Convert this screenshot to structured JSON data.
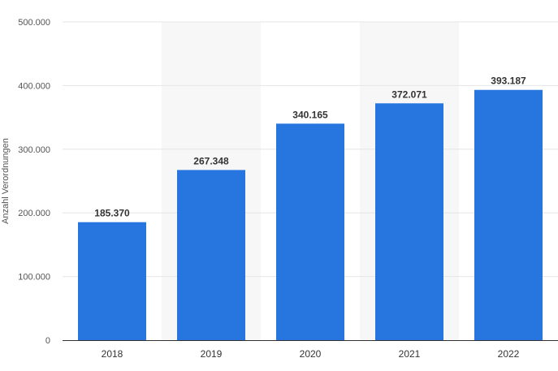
{
  "chart_data": {
    "type": "bar",
    "title": "",
    "xlabel": "",
    "ylabel": "Anzahl Verordnungen",
    "categories": [
      "2018",
      "2019",
      "2020",
      "2021",
      "2022"
    ],
    "values": [
      185370,
      267348,
      340165,
      372071,
      393187
    ],
    "value_labels": [
      "185.370",
      "267.348",
      "340.165",
      "372.071",
      "393.187"
    ],
    "ylim": [
      0,
      500000
    ],
    "yticks": [
      0,
      100000,
      200000,
      300000,
      400000,
      500000
    ],
    "ytick_labels": [
      "0",
      "100.000",
      "200.000",
      "300.000",
      "400.000",
      "500.000"
    ],
    "grid": true,
    "alternating_band_shading": true,
    "colors": {
      "bar": "#2775de",
      "band": "#f7f7f7",
      "grid": "#e6e6e6",
      "axis": "#333333"
    }
  }
}
